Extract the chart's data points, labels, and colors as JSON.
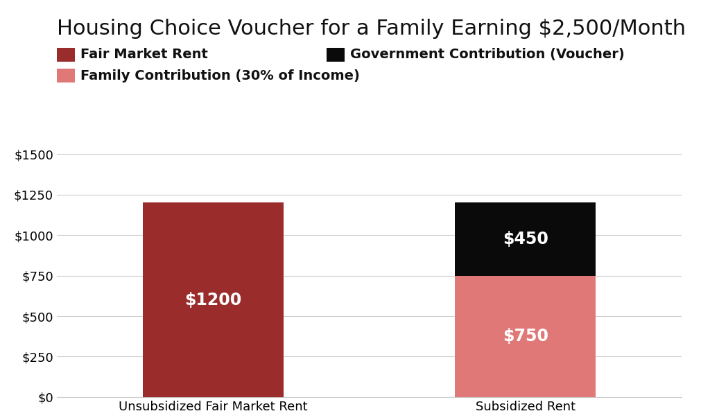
{
  "title": "Housing Choice Voucher for a Family Earning $2,500/Month",
  "categories": [
    "Unsubsidized Fair Market Rent",
    "Subsidized Rent"
  ],
  "bar1": {
    "label": "Fair Market Rent",
    "color": "#9B2C2C",
    "value": 1200
  },
  "bar2_bottom": {
    "label": "Family Contribution (30% of Income)",
    "color": "#E07878",
    "value": 750
  },
  "bar2_top": {
    "label": "Government Contribution (Voucher)",
    "color": "#0a0a0a",
    "value": 450
  },
  "yticks": [
    0,
    250,
    500,
    750,
    1000,
    1250,
    1500
  ],
  "ytick_labels": [
    "$0",
    "$250",
    "$500",
    "$750",
    "$1000",
    "$1250",
    "$1500"
  ],
  "ylim": [
    0,
    1600
  ],
  "bar_width": 0.45,
  "label_color": "#ffffff",
  "label_fontsize": 17,
  "title_fontsize": 22,
  "legend_fontsize": 14,
  "background_color": "#ffffff",
  "grid_color": "#cccccc",
  "tick_label_fontsize": 13
}
